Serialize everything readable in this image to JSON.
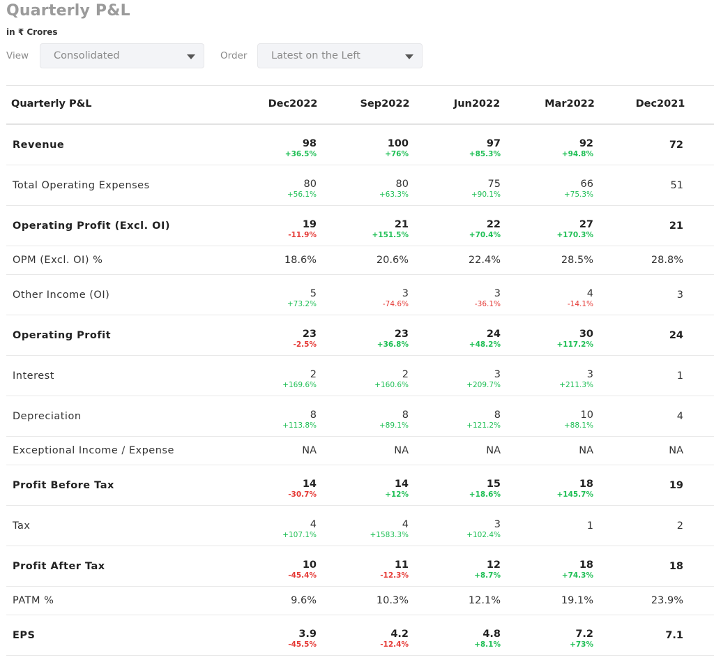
{
  "header": {
    "title": "Quarterly P&L",
    "subtitle": "in ₹ Crores"
  },
  "controls": {
    "view_label": "View",
    "view_value": "Consolidated",
    "order_label": "Order",
    "order_value": "Latest on the Left"
  },
  "table": {
    "header_label": "Quarterly P&L",
    "columns": [
      "Dec2022",
      "Sep2022",
      "Jun2022",
      "Mar2022",
      "Dec2021"
    ],
    "rows": [
      {
        "label": "Revenue",
        "bold": true,
        "cells": [
          {
            "value": "98",
            "change": "+36.5%"
          },
          {
            "value": "100",
            "change": "+76%"
          },
          {
            "value": "97",
            "change": "+85.3%"
          },
          {
            "value": "92",
            "change": "+94.8%"
          },
          {
            "value": "72",
            "change": ""
          }
        ]
      },
      {
        "label": "Total Operating Expenses",
        "bold": false,
        "cells": [
          {
            "value": "80",
            "change": "+56.1%"
          },
          {
            "value": "80",
            "change": "+63.3%"
          },
          {
            "value": "75",
            "change": "+90.1%"
          },
          {
            "value": "66",
            "change": "+75.3%"
          },
          {
            "value": "51",
            "change": ""
          }
        ]
      },
      {
        "label": "Operating Profit (Excl. OI)",
        "bold": true,
        "cells": [
          {
            "value": "19",
            "change": "-11.9%"
          },
          {
            "value": "21",
            "change": "+151.5%"
          },
          {
            "value": "22",
            "change": "+70.4%"
          },
          {
            "value": "27",
            "change": "+170.3%"
          },
          {
            "value": "21",
            "change": ""
          }
        ]
      },
      {
        "label": "OPM (Excl. OI) %",
        "bold": false,
        "cells": [
          {
            "value": "18.6%",
            "change": ""
          },
          {
            "value": "20.6%",
            "change": ""
          },
          {
            "value": "22.4%",
            "change": ""
          },
          {
            "value": "28.5%",
            "change": ""
          },
          {
            "value": "28.8%",
            "change": ""
          }
        ]
      },
      {
        "label": "Other Income (OI)",
        "bold": false,
        "cells": [
          {
            "value": "5",
            "change": "+73.2%"
          },
          {
            "value": "3",
            "change": "-74.6%"
          },
          {
            "value": "3",
            "change": "-36.1%"
          },
          {
            "value": "4",
            "change": "-14.1%"
          },
          {
            "value": "3",
            "change": ""
          }
        ]
      },
      {
        "label": "Operating Profit",
        "bold": true,
        "cells": [
          {
            "value": "23",
            "change": "-2.5%"
          },
          {
            "value": "23",
            "change": "+36.8%"
          },
          {
            "value": "24",
            "change": "+48.2%"
          },
          {
            "value": "30",
            "change": "+117.2%"
          },
          {
            "value": "24",
            "change": ""
          }
        ]
      },
      {
        "label": "Interest",
        "bold": false,
        "cells": [
          {
            "value": "2",
            "change": "+169.6%"
          },
          {
            "value": "2",
            "change": "+160.6%"
          },
          {
            "value": "3",
            "change": "+209.7%"
          },
          {
            "value": "3",
            "change": "+211.3%"
          },
          {
            "value": "1",
            "change": ""
          }
        ]
      },
      {
        "label": "Depreciation",
        "bold": false,
        "cells": [
          {
            "value": "8",
            "change": "+113.8%"
          },
          {
            "value": "8",
            "change": "+89.1%"
          },
          {
            "value": "8",
            "change": "+121.2%"
          },
          {
            "value": "10",
            "change": "+88.1%"
          },
          {
            "value": "4",
            "change": ""
          }
        ]
      },
      {
        "label": "Exceptional Income / Expense",
        "bold": false,
        "cells": [
          {
            "value": "NA",
            "change": ""
          },
          {
            "value": "NA",
            "change": ""
          },
          {
            "value": "NA",
            "change": ""
          },
          {
            "value": "NA",
            "change": ""
          },
          {
            "value": "NA",
            "change": ""
          }
        ]
      },
      {
        "label": "Profit Before Tax",
        "bold": true,
        "cells": [
          {
            "value": "14",
            "change": "-30.7%"
          },
          {
            "value": "14",
            "change": "+12%"
          },
          {
            "value": "15",
            "change": "+18.6%"
          },
          {
            "value": "18",
            "change": "+145.7%"
          },
          {
            "value": "19",
            "change": ""
          }
        ]
      },
      {
        "label": "Tax",
        "bold": false,
        "cells": [
          {
            "value": "4",
            "change": "+107.1%"
          },
          {
            "value": "4",
            "change": "+1583.3%"
          },
          {
            "value": "3",
            "change": "+102.4%"
          },
          {
            "value": "1",
            "change": ""
          },
          {
            "value": "2",
            "change": ""
          }
        ]
      },
      {
        "label": "Profit After Tax",
        "bold": true,
        "cells": [
          {
            "value": "10",
            "change": "-45.4%"
          },
          {
            "value": "11",
            "change": "-12.3%"
          },
          {
            "value": "12",
            "change": "+8.7%"
          },
          {
            "value": "18",
            "change": "+74.3%"
          },
          {
            "value": "18",
            "change": ""
          }
        ]
      },
      {
        "label": "PATM %",
        "bold": false,
        "cells": [
          {
            "value": "9.6%",
            "change": ""
          },
          {
            "value": "10.3%",
            "change": ""
          },
          {
            "value": "12.1%",
            "change": ""
          },
          {
            "value": "19.1%",
            "change": ""
          },
          {
            "value": "23.9%",
            "change": ""
          }
        ]
      },
      {
        "label": "EPS",
        "bold": true,
        "cells": [
          {
            "value": "3.9",
            "change": "-45.5%"
          },
          {
            "value": "4.2",
            "change": "-12.4%"
          },
          {
            "value": "4.8",
            "change": "+8.1%"
          },
          {
            "value": "7.2",
            "change": "+73%"
          },
          {
            "value": "7.1",
            "change": ""
          }
        ]
      }
    ]
  },
  "colors": {
    "positive": "#1fbf55",
    "negative": "#e53935",
    "title": "#9b9b9b"
  }
}
